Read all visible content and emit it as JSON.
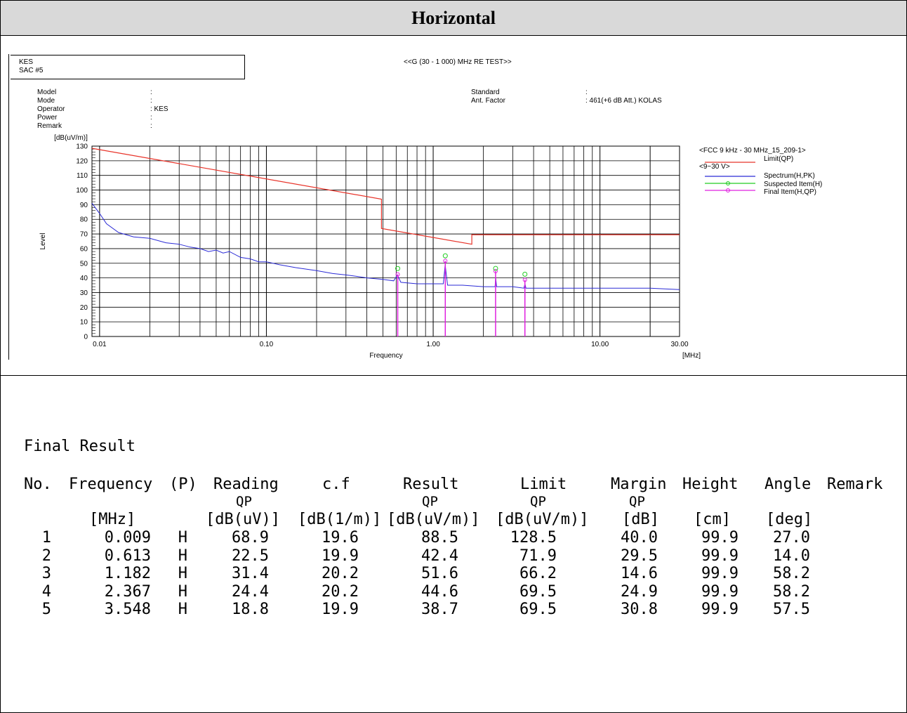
{
  "page": {
    "title": "Horizontal"
  },
  "chart_header": {
    "lab_line1": "KES",
    "lab_line2": "SAC #5",
    "test_title": "<<G (30 - 1 000) MHz RE TEST>>",
    "info_labels": [
      "Model",
      "Mode",
      "Operator",
      "Power",
      "Remark"
    ],
    "info_colons": [
      ":",
      ":",
      ": KES",
      ":",
      ":"
    ],
    "standard_label": "Standard",
    "ant_factor_label": "Ant. Factor",
    "standard_value": ":",
    "ant_factor_value": ": 461(+6 dB Att.) KOLAS"
  },
  "legend": {
    "group1": "<FCC 9 kHz - 30 MHz_15_209-1>",
    "limit": "Limit(QP)",
    "group2": "<9~30 V>",
    "spectrum": "Spectrum(H,PK)",
    "suspected": "Suspected Item(H)",
    "final": "Final Item(H,QP)"
  },
  "colors": {
    "limit": "#e8342a",
    "spectrum": "#2b2bd6",
    "suspected": "#22cc22",
    "final": "#e020e0",
    "grid": "#000000"
  },
  "chart_data": {
    "type": "line",
    "x_scale": "log",
    "xlim": [
      0.009,
      30
    ],
    "ylim": [
      0,
      130
    ],
    "ylabel_unit": "[dB(uV/m)]",
    "ylabel": "Level",
    "xlabel": "Frequency",
    "xunit": "[MHz]",
    "x_tick_labels": [
      {
        "x": 0.01,
        "label": "0.01"
      },
      {
        "x": 0.1,
        "label": "0.10"
      },
      {
        "x": 1,
        "label": "1.00"
      },
      {
        "x": 10,
        "label": "10.00"
      },
      {
        "x": 30,
        "label": "30.00"
      }
    ],
    "y_ticks": [
      0,
      10,
      20,
      30,
      40,
      50,
      60,
      70,
      80,
      90,
      100,
      110,
      120,
      130
    ],
    "limit": {
      "name": "Limit(QP)",
      "points": [
        [
          0.009,
          128.5
        ],
        [
          0.49,
          93.8
        ],
        [
          0.49,
          73.8
        ],
        [
          1.705,
          63.0
        ],
        [
          1.705,
          69.5
        ],
        [
          30,
          69.5
        ]
      ]
    },
    "spectrum": {
      "name": "Spectrum(H,PK)",
      "points": [
        [
          0.009,
          91
        ],
        [
          0.01,
          84
        ],
        [
          0.011,
          77
        ],
        [
          0.013,
          71
        ],
        [
          0.016,
          68
        ],
        [
          0.02,
          67
        ],
        [
          0.025,
          64
        ],
        [
          0.03,
          63
        ],
        [
          0.035,
          61
        ],
        [
          0.04,
          60
        ],
        [
          0.045,
          58
        ],
        [
          0.05,
          59
        ],
        [
          0.055,
          57
        ],
        [
          0.06,
          58
        ],
        [
          0.07,
          54
        ],
        [
          0.08,
          53
        ],
        [
          0.09,
          51
        ],
        [
          0.1,
          51
        ],
        [
          0.12,
          49
        ],
        [
          0.15,
          47
        ],
        [
          0.2,
          45
        ],
        [
          0.25,
          43
        ],
        [
          0.3,
          42
        ],
        [
          0.35,
          41
        ],
        [
          0.4,
          40
        ],
        [
          0.5,
          39
        ],
        [
          0.58,
          38
        ],
        [
          0.61,
          42
        ],
        [
          0.64,
          37
        ],
        [
          0.8,
          36
        ],
        [
          1.0,
          36
        ],
        [
          1.15,
          36
        ],
        [
          1.18,
          49
        ],
        [
          1.22,
          35
        ],
        [
          1.5,
          35
        ],
        [
          2.0,
          34
        ],
        [
          2.35,
          34
        ],
        [
          2.37,
          40
        ],
        [
          2.4,
          34
        ],
        [
          3.0,
          34
        ],
        [
          3.5,
          33
        ],
        [
          3.55,
          36
        ],
        [
          3.6,
          33
        ],
        [
          5,
          33
        ],
        [
          10,
          33
        ],
        [
          20,
          33
        ],
        [
          30,
          32
        ]
      ]
    },
    "suspected": {
      "name": "Suspected Item(H)",
      "points": [
        [
          0.613,
          46.4
        ],
        [
          1.182,
          55.1
        ],
        [
          2.367,
          46.5
        ],
        [
          3.548,
          42.5
        ]
      ]
    },
    "final": {
      "name": "Final Item(H,QP)",
      "points": [
        [
          0.613,
          42.4
        ],
        [
          1.182,
          51.6
        ],
        [
          2.367,
          44.6
        ],
        [
          3.548,
          38.7
        ]
      ]
    }
  },
  "result": {
    "title": "Final Result",
    "headers": {
      "no": "No.",
      "frequency": "Frequency",
      "p": "(P)",
      "reading": "Reading",
      "cf": "c.f",
      "result": "Result",
      "limit": "Limit",
      "margin": "Margin",
      "height": "Height",
      "angle": "Angle",
      "remark": "Remark"
    },
    "subheaders": {
      "reading": "QP",
      "result": "QP",
      "limit": "QP",
      "margin": "QP"
    },
    "units": {
      "frequency": "[MHz]",
      "reading": "[dB(uV)]",
      "cf": "[dB(1/m)]",
      "result": "[dB(uV/m)]",
      "limit": "[dB(uV/m)]",
      "margin": "[dB]",
      "height": "[cm]",
      "angle": "[deg]"
    },
    "rows": [
      [
        "1",
        "0.009",
        "H",
        "68.9",
        "19.6",
        "88.5",
        "128.5",
        "40.0",
        "99.9",
        "27.0"
      ],
      [
        "2",
        "0.613",
        "H",
        "22.5",
        "19.9",
        "42.4",
        "71.9",
        "29.5",
        "99.9",
        "14.0"
      ],
      [
        "3",
        "1.182",
        "H",
        "31.4",
        "20.2",
        "51.6",
        "66.2",
        "14.6",
        "99.9",
        "58.2"
      ],
      [
        "4",
        "2.367",
        "H",
        "24.4",
        "20.2",
        "44.6",
        "69.5",
        "24.9",
        "99.9",
        "58.2"
      ],
      [
        "5",
        "3.548",
        "H",
        "18.8",
        "19.9",
        "38.7",
        "69.5",
        "30.8",
        "99.9",
        "57.5"
      ]
    ]
  }
}
